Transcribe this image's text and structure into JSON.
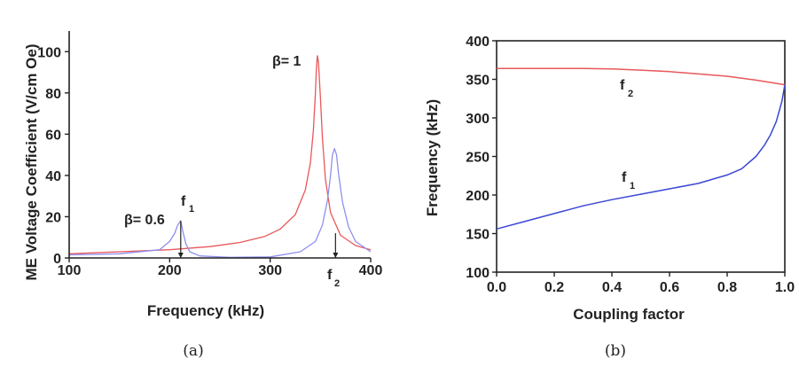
{
  "chart_data": [
    {
      "id": "a",
      "type": "line",
      "caption": "(a)",
      "xlabel": "Frequency (kHz)",
      "ylabel": "ME Voltage Coefficient (V/cm Oe)",
      "xlim": [
        100,
        400
      ],
      "ylim": [
        0,
        110
      ],
      "xticks": [
        100,
        200,
        300,
        400
      ],
      "yticks": [
        0,
        20,
        40,
        60,
        80,
        100
      ],
      "grid": false,
      "series": [
        {
          "name": "β= 1",
          "color": "#e8575a",
          "x": [
            100,
            150,
            200,
            240,
            270,
            295,
            310,
            325,
            335,
            340,
            343,
            345,
            346,
            347,
            348,
            350,
            352,
            355,
            360,
            370,
            385,
            400
          ],
          "y": [
            2,
            3,
            4,
            5.5,
            7.5,
            10.5,
            14,
            21,
            33,
            46,
            62,
            80,
            92,
            98,
            95,
            78,
            58,
            38,
            22,
            11,
            6,
            4
          ]
        },
        {
          "name": "β= 0.6",
          "color": "#8f8ff0",
          "x": [
            100,
            150,
            190,
            200,
            205,
            208,
            211,
            213,
            216,
            220,
            230,
            260,
            300,
            330,
            345,
            352,
            357,
            360,
            362,
            364,
            366,
            368,
            372,
            378,
            385,
            400
          ],
          "y": [
            1.5,
            2,
            4,
            8,
            12,
            16,
            18,
            13,
            7,
            3,
            1,
            0.3,
            0.5,
            3,
            8,
            16,
            28,
            40,
            50,
            53,
            50,
            41,
            27,
            15,
            8,
            3
          ]
        }
      ],
      "annotations": {
        "beta1": "β= 1",
        "beta06": "β= 0.6",
        "f1": "f",
        "f1_sub": "1",
        "f2": "f",
        "f2_sub": "2"
      },
      "markers": [
        {
          "x": 211,
          "y_top": 18
        },
        {
          "x": 365,
          "y_top": 12
        }
      ]
    },
    {
      "id": "b",
      "type": "line",
      "caption": "(b)",
      "xlabel": "Coupling factor",
      "ylabel": "Frequency (kHz)",
      "xlim": [
        0.0,
        1.0
      ],
      "ylim": [
        100,
        400
      ],
      "xticks": [
        "0.0",
        "0.2",
        "0.4",
        "0.6",
        "0.8",
        "1.0"
      ],
      "yticks": [
        "100",
        "150",
        "200",
        "250",
        "300",
        "350",
        "400"
      ],
      "grid": false,
      "series": [
        {
          "name": "f2",
          "color": "#e8575a",
          "x": [
            0.0,
            0.1,
            0.2,
            0.3,
            0.4,
            0.5,
            0.6,
            0.7,
            0.8,
            0.9,
            1.0
          ],
          "y": [
            364,
            364,
            364,
            364,
            363.5,
            362,
            360,
            357,
            354,
            349,
            343
          ]
        },
        {
          "name": "f1",
          "color": "#3b47d4",
          "x": [
            0.0,
            0.1,
            0.2,
            0.3,
            0.4,
            0.5,
            0.6,
            0.7,
            0.8,
            0.85,
            0.9,
            0.93,
            0.95,
            0.97,
            0.98,
            0.99,
            1.0
          ],
          "y": [
            156,
            166,
            176,
            186,
            194,
            201,
            208,
            215,
            226,
            234,
            250,
            265,
            278,
            295,
            308,
            322,
            343
          ]
        }
      ],
      "annotations": {
        "f2": "f",
        "f2_sub": "2",
        "f1": "f",
        "f1_sub": "1"
      }
    }
  ]
}
